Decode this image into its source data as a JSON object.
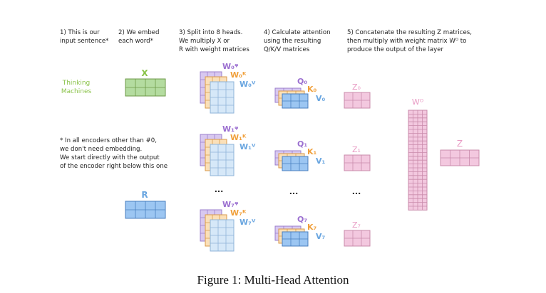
{
  "steps": {
    "s1": [
      "1) This is our",
      "input sentence*"
    ],
    "s2": [
      "2) We embed",
      "each word*"
    ],
    "s3": [
      "3) Split into 8 heads.",
      "We multiply X or",
      "R with weight matrices"
    ],
    "s4": [
      "4) Calculate attention",
      "using the resulting",
      "Q/K/V matrices"
    ],
    "s5": [
      "5) Concatenate the resulting Z matrices,",
      "then multiply with weight matrix Wᴼ to",
      "produce the output of the layer"
    ]
  },
  "inputs": {
    "word1": "Thinking",
    "word2": "Machines",
    "x_label": "X",
    "r_label": "R"
  },
  "footnote": [
    "* In all encoders other than #0,",
    "we don't need embedding.",
    "We start directly with the output",
    "of the encoder right below this one"
  ],
  "heads": [
    {
      "wq": "W₀ᵠ",
      "wk": "W₀ᴷ",
      "wv": "W₀ⱽ",
      "q": "Q₀",
      "k": "K₀",
      "v": "V₀",
      "z": "Z₀"
    },
    {
      "wq": "W₁ᵠ",
      "wk": "W₁ᴷ",
      "wv": "W₁ⱽ",
      "q": "Q₁",
      "k": "K₁",
      "v": "V₁",
      "z": "Z₁"
    },
    {
      "wq": "W₇ᵠ",
      "wk": "W₇ᴷ",
      "wv": "W₇ⱽ",
      "q": "Q₇",
      "k": "K₇",
      "v": "V₇",
      "z": "Z₇"
    }
  ],
  "ellipsis": "...",
  "wo_label": "Wᴼ",
  "z_label": "Z",
  "caption": "Figure 1: Multi-Head Attention",
  "colors": {
    "text": "#222222",
    "green": "#8bc34a",
    "green_fill": "#b4dca0",
    "blue": "#6aa6e0",
    "blue_fill": "#9cc6f2",
    "purple": "#9b6fd0",
    "purple_fill": "#d8c8f0",
    "orange": "#f0a03c",
    "orange_fill": "#fbe0b8",
    "lightblue_fill": "#d6e8f8",
    "pink": "#e89bc4",
    "pink_fill": "#f3c8df"
  }
}
